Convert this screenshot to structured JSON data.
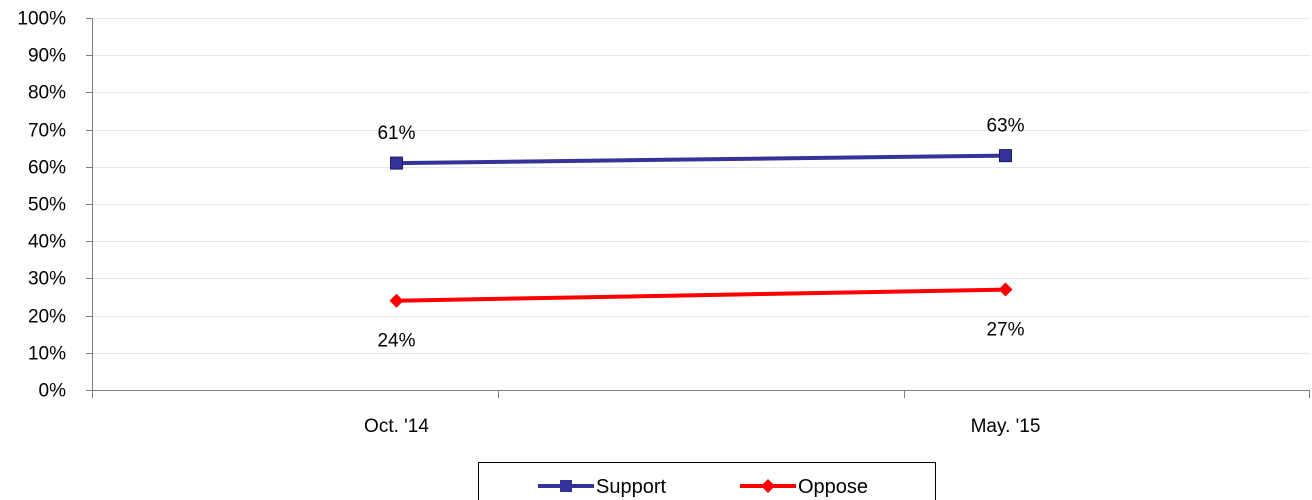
{
  "chart_data": {
    "type": "line",
    "categories": [
      "Oct. '14",
      "May. '15"
    ],
    "series": [
      {
        "name": "Support",
        "values": [
          61,
          63
        ],
        "labels": [
          "61%",
          "63%"
        ],
        "color": "#333399",
        "marker": "square"
      },
      {
        "name": "Oppose",
        "values": [
          24,
          27
        ],
        "labels": [
          "24%",
          "27%"
        ],
        "color": "#ff0000",
        "marker": "diamond"
      }
    ],
    "ylim": [
      0,
      100
    ],
    "yticks": [
      0,
      10,
      20,
      30,
      40,
      50,
      60,
      70,
      80,
      90,
      100
    ],
    "ytick_labels": [
      "0%",
      "10%",
      "20%",
      "30%",
      "40%",
      "50%",
      "60%",
      "70%",
      "80%",
      "90%",
      "100%"
    ],
    "grid": true,
    "grid_color": "#e4e4f2",
    "legend": "bottom"
  }
}
